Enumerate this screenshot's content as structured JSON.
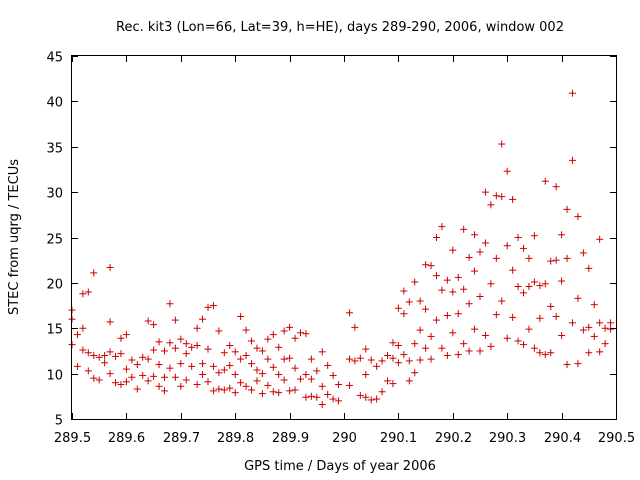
{
  "chart_data": {
    "type": "scatter",
    "title": "Rec. kit3 (Lon=66, Lat=39, h=HE), days 289-290, 2006, window 002",
    "xlabel": "GPS time / Days of year 2006",
    "ylabel": "STEC from uqrg / TECUs",
    "xlim": [
      289.5,
      290.5
    ],
    "ylim": [
      5,
      45
    ],
    "xticks": [
      289.5,
      289.6,
      289.7,
      289.8,
      289.9,
      290,
      290.1,
      290.2,
      290.3,
      290.4,
      290.5
    ],
    "xtick_labels": [
      "289.5",
      "289.6",
      "289.7",
      "289.8",
      "289.9",
      "290",
      "290.1",
      "290.2",
      "290.3",
      "290.4",
      "290.5"
    ],
    "yticks": [
      5,
      10,
      15,
      20,
      25,
      30,
      35,
      40,
      45
    ],
    "ytick_labels": [
      "5",
      "10",
      "15",
      "20",
      "25",
      "30",
      "35",
      "40",
      "45"
    ],
    "grid": false,
    "marker": "+",
    "color": "#cc0000",
    "points": [
      [
        289.5,
        17.0
      ],
      [
        289.5,
        16.0
      ],
      [
        289.5,
        13.2
      ],
      [
        289.51,
        14.3
      ],
      [
        289.51,
        10.8
      ],
      [
        289.52,
        18.8
      ],
      [
        289.52,
        15.0
      ],
      [
        289.52,
        12.6
      ],
      [
        289.53,
        19.0
      ],
      [
        289.53,
        12.3
      ],
      [
        289.53,
        10.3
      ],
      [
        289.54,
        21.1
      ],
      [
        289.54,
        12.0
      ],
      [
        289.54,
        9.5
      ],
      [
        289.55,
        11.8
      ],
      [
        289.55,
        9.3
      ],
      [
        289.56,
        12.0
      ],
      [
        289.56,
        11.2
      ],
      [
        289.57,
        21.7
      ],
      [
        289.57,
        15.7
      ],
      [
        289.57,
        12.4
      ],
      [
        289.57,
        10.0
      ],
      [
        289.58,
        11.9
      ],
      [
        289.58,
        9.0
      ],
      [
        289.59,
        13.9
      ],
      [
        289.59,
        12.2
      ],
      [
        289.59,
        8.8
      ],
      [
        289.6,
        14.3
      ],
      [
        289.6,
        10.5
      ],
      [
        289.6,
        9.1
      ],
      [
        289.61,
        11.5
      ],
      [
        289.61,
        9.6
      ],
      [
        289.62,
        11.0
      ],
      [
        289.62,
        8.3
      ],
      [
        289.63,
        11.8
      ],
      [
        289.63,
        9.8
      ],
      [
        289.64,
        15.8
      ],
      [
        289.64,
        11.6
      ],
      [
        289.64,
        9.2
      ],
      [
        289.65,
        15.4
      ],
      [
        289.65,
        12.6
      ],
      [
        289.65,
        9.7
      ],
      [
        289.66,
        13.5
      ],
      [
        289.66,
        11.0
      ],
      [
        289.66,
        8.6
      ],
      [
        289.67,
        12.5
      ],
      [
        289.67,
        9.6
      ],
      [
        289.67,
        8.1
      ],
      [
        289.68,
        17.7
      ],
      [
        289.68,
        13.4
      ],
      [
        289.68,
        10.6
      ],
      [
        289.69,
        15.9
      ],
      [
        289.69,
        12.8
      ],
      [
        289.69,
        9.6
      ],
      [
        289.7,
        13.8
      ],
      [
        289.7,
        11.1
      ],
      [
        289.7,
        8.6
      ],
      [
        289.71,
        13.3
      ],
      [
        289.71,
        12.2
      ],
      [
        289.71,
        9.3
      ],
      [
        289.72,
        12.9
      ],
      [
        289.72,
        10.8
      ],
      [
        289.73,
        15.0
      ],
      [
        289.73,
        13.1
      ],
      [
        289.73,
        8.8
      ],
      [
        289.74,
        16.0
      ],
      [
        289.74,
        11.1
      ],
      [
        289.74,
        9.9
      ],
      [
        289.75,
        17.3
      ],
      [
        289.75,
        12.7
      ],
      [
        289.75,
        9.1
      ],
      [
        289.76,
        17.5
      ],
      [
        289.76,
        10.8
      ],
      [
        289.76,
        8.1
      ],
      [
        289.77,
        14.7
      ],
      [
        289.77,
        10.1
      ],
      [
        289.77,
        8.3
      ],
      [
        289.78,
        12.3
      ],
      [
        289.78,
        10.4
      ],
      [
        289.78,
        8.2
      ],
      [
        289.79,
        13.1
      ],
      [
        289.79,
        10.9
      ],
      [
        289.79,
        8.4
      ],
      [
        289.8,
        12.4
      ],
      [
        289.8,
        9.9
      ],
      [
        289.8,
        7.9
      ],
      [
        289.81,
        16.3
      ],
      [
        289.81,
        11.6
      ],
      [
        289.81,
        9.0
      ],
      [
        289.82,
        14.8
      ],
      [
        289.82,
        12.0
      ],
      [
        289.82,
        8.6
      ],
      [
        289.83,
        13.6
      ],
      [
        289.83,
        11.1
      ],
      [
        289.83,
        8.2
      ],
      [
        289.84,
        12.8
      ],
      [
        289.84,
        10.4
      ],
      [
        289.84,
        9.2
      ],
      [
        289.85,
        12.5
      ],
      [
        289.85,
        10.0
      ],
      [
        289.85,
        7.8
      ],
      [
        289.86,
        13.8
      ],
      [
        289.86,
        11.6
      ],
      [
        289.86,
        8.7
      ],
      [
        289.87,
        14.3
      ],
      [
        289.87,
        10.7
      ],
      [
        289.87,
        8.0
      ],
      [
        289.88,
        12.9
      ],
      [
        289.88,
        9.9
      ],
      [
        289.88,
        7.9
      ],
      [
        289.89,
        14.7
      ],
      [
        289.89,
        11.6
      ],
      [
        289.89,
        9.3
      ],
      [
        289.9,
        15.1
      ],
      [
        289.9,
        11.7
      ],
      [
        289.9,
        8.1
      ],
      [
        289.91,
        13.9
      ],
      [
        289.91,
        10.6
      ],
      [
        289.91,
        8.2
      ],
      [
        289.92,
        14.5
      ],
      [
        289.92,
        9.4
      ],
      [
        289.93,
        14.4
      ],
      [
        289.93,
        9.9
      ],
      [
        289.93,
        7.4
      ],
      [
        289.94,
        11.6
      ],
      [
        289.94,
        9.4
      ],
      [
        289.94,
        7.5
      ],
      [
        289.95,
        10.3
      ],
      [
        289.95,
        7.4
      ],
      [
        289.96,
        12.4
      ],
      [
        289.96,
        8.6
      ],
      [
        289.96,
        6.6
      ],
      [
        289.97,
        10.9
      ],
      [
        289.97,
        7.7
      ],
      [
        289.98,
        9.8
      ],
      [
        289.98,
        7.2
      ],
      [
        289.99,
        8.8
      ],
      [
        289.99,
        7.0
      ],
      [
        290.01,
        16.7
      ],
      [
        290.01,
        11.6
      ],
      [
        290.01,
        8.7
      ],
      [
        290.02,
        15.1
      ],
      [
        290.02,
        11.4
      ],
      [
        290.03,
        11.7
      ],
      [
        290.03,
        7.6
      ],
      [
        290.04,
        12.7
      ],
      [
        290.04,
        9.9
      ],
      [
        290.04,
        7.4
      ],
      [
        290.05,
        11.5
      ],
      [
        290.05,
        7.1
      ],
      [
        290.06,
        10.8
      ],
      [
        290.06,
        7.2
      ],
      [
        290.07,
        11.4
      ],
      [
        290.07,
        8.0
      ],
      [
        290.08,
        12.0
      ],
      [
        290.08,
        9.2
      ],
      [
        290.09,
        13.4
      ],
      [
        290.09,
        11.7
      ],
      [
        290.09,
        8.9
      ],
      [
        290.1,
        17.2
      ],
      [
        290.1,
        13.1
      ],
      [
        290.1,
        11.2
      ],
      [
        290.11,
        19.1
      ],
      [
        290.11,
        16.6
      ],
      [
        290.11,
        12.1
      ],
      [
        290.12,
        17.9
      ],
      [
        290.12,
        11.4
      ],
      [
        290.12,
        9.2
      ],
      [
        290.13,
        20.1
      ],
      [
        290.13,
        13.3
      ],
      [
        290.13,
        10.1
      ],
      [
        290.14,
        18.0
      ],
      [
        290.14,
        14.8
      ],
      [
        290.14,
        11.5
      ],
      [
        290.15,
        22.0
      ],
      [
        290.15,
        17.1
      ],
      [
        290.15,
        12.8
      ],
      [
        290.16,
        21.9
      ],
      [
        290.16,
        14.1
      ],
      [
        290.16,
        11.6
      ],
      [
        290.17,
        25.0
      ],
      [
        290.17,
        20.8
      ],
      [
        290.17,
        15.9
      ],
      [
        290.18,
        26.2
      ],
      [
        290.18,
        19.2
      ],
      [
        290.18,
        12.8
      ],
      [
        290.19,
        20.3
      ],
      [
        290.19,
        16.4
      ],
      [
        290.19,
        12.0
      ],
      [
        290.2,
        23.6
      ],
      [
        290.2,
        19.0
      ],
      [
        290.2,
        14.5
      ],
      [
        290.21,
        20.6
      ],
      [
        290.21,
        16.6
      ],
      [
        290.21,
        12.1
      ],
      [
        290.22,
        25.9
      ],
      [
        290.22,
        19.3
      ],
      [
        290.22,
        13.3
      ],
      [
        290.23,
        22.8
      ],
      [
        290.23,
        17.7
      ],
      [
        290.23,
        12.5
      ],
      [
        290.24,
        25.3
      ],
      [
        290.24,
        21.3
      ],
      [
        290.24,
        14.9
      ],
      [
        290.25,
        23.4
      ],
      [
        290.25,
        18.5
      ],
      [
        290.25,
        12.5
      ],
      [
        290.26,
        30.0
      ],
      [
        290.26,
        24.4
      ],
      [
        290.26,
        14.2
      ],
      [
        290.27,
        28.6
      ],
      [
        290.27,
        19.9
      ],
      [
        290.27,
        13.0
      ],
      [
        290.28,
        29.6
      ],
      [
        290.28,
        22.7
      ],
      [
        290.28,
        16.5
      ],
      [
        290.29,
        35.3
      ],
      [
        290.29,
        29.5
      ],
      [
        290.29,
        18.0
      ],
      [
        290.3,
        32.3
      ],
      [
        290.3,
        24.1
      ],
      [
        290.3,
        13.9
      ],
      [
        290.31,
        29.2
      ],
      [
        290.31,
        21.4
      ],
      [
        290.31,
        16.2
      ],
      [
        290.32,
        25.0
      ],
      [
        290.32,
        19.6
      ],
      [
        290.32,
        13.6
      ],
      [
        290.33,
        23.8
      ],
      [
        290.33,
        18.9
      ],
      [
        290.33,
        13.2
      ],
      [
        290.34,
        22.7
      ],
      [
        290.34,
        19.6
      ],
      [
        290.34,
        14.9
      ],
      [
        290.35,
        25.2
      ],
      [
        290.35,
        20.1
      ],
      [
        290.35,
        12.8
      ],
      [
        290.36,
        19.7
      ],
      [
        290.36,
        16.1
      ],
      [
        290.36,
        12.3
      ],
      [
        290.37,
        31.2
      ],
      [
        290.37,
        19.9
      ],
      [
        290.37,
        12.1
      ],
      [
        290.38,
        22.4
      ],
      [
        290.38,
        17.4
      ],
      [
        290.38,
        12.3
      ],
      [
        290.39,
        30.6
      ],
      [
        290.39,
        22.5
      ],
      [
        290.39,
        16.3
      ],
      [
        290.4,
        25.3
      ],
      [
        290.4,
        20.2
      ],
      [
        290.4,
        14.2
      ],
      [
        290.41,
        28.1
      ],
      [
        290.41,
        22.7
      ],
      [
        290.41,
        11.0
      ],
      [
        290.42,
        40.9
      ],
      [
        290.42,
        33.5
      ],
      [
        290.42,
        15.6
      ],
      [
        290.43,
        27.3
      ],
      [
        290.43,
        18.3
      ],
      [
        290.43,
        11.1
      ],
      [
        290.44,
        23.3
      ],
      [
        290.44,
        14.8
      ],
      [
        290.45,
        21.6
      ],
      [
        290.45,
        15.1
      ],
      [
        290.45,
        12.3
      ],
      [
        290.46,
        17.6
      ],
      [
        290.46,
        14.1
      ],
      [
        290.47,
        24.8
      ],
      [
        290.47,
        15.6
      ],
      [
        290.47,
        12.4
      ],
      [
        290.48,
        15.0
      ],
      [
        290.48,
        13.3
      ],
      [
        290.49,
        15.6
      ],
      [
        290.49,
        14.9
      ]
    ]
  }
}
